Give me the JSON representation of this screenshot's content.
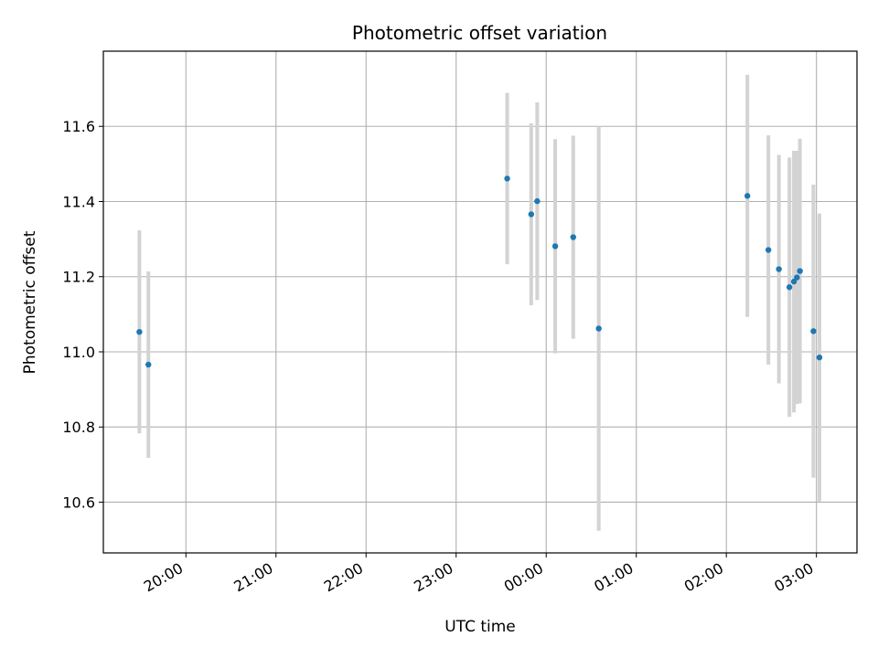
{
  "chart_data": {
    "type": "scatter",
    "title": "Photometric offset variation",
    "xlabel": "UTC time",
    "ylabel": "Photometric offset",
    "grid": true,
    "x_axis_kind": "time",
    "xlim": [
      "19:05",
      "03:27"
    ],
    "ylim": [
      10.465,
      11.8
    ],
    "x_ticks": [
      "20:00",
      "21:00",
      "22:00",
      "23:00",
      "00:00",
      "01:00",
      "02:00",
      "03:00"
    ],
    "y_ticks": [
      "10.6",
      "10.8",
      "11.0",
      "11.2",
      "11.4",
      "11.6"
    ],
    "point_color": "#1f77b4",
    "errorbar_color": "#d3d3d3",
    "points": [
      {
        "time": "19:29",
        "value": 11.053,
        "error": 0.27
      },
      {
        "time": "19:35",
        "value": 10.966,
        "error": 0.248
      },
      {
        "time": "23:34",
        "value": 11.461,
        "error": 0.228
      },
      {
        "time": "23:50",
        "value": 11.366,
        "error": 0.242
      },
      {
        "time": "23:54",
        "value": 11.401,
        "error": 0.263
      },
      {
        "time": "00:06",
        "value": 11.281,
        "error": 0.285
      },
      {
        "time": "00:18",
        "value": 11.305,
        "error": 0.27
      },
      {
        "time": "00:35",
        "value": 11.062,
        "error": 0.538
      },
      {
        "time": "02:14",
        "value": 11.415,
        "error": 0.322
      },
      {
        "time": "02:28",
        "value": 11.271,
        "error": 0.305
      },
      {
        "time": "02:35",
        "value": 11.22,
        "error": 0.304
      },
      {
        "time": "02:42",
        "value": 11.172,
        "error": 0.345
      },
      {
        "time": "02:45",
        "value": 11.187,
        "error": 0.348
      },
      {
        "time": "02:47",
        "value": 11.198,
        "error": 0.337
      },
      {
        "time": "02:49",
        "value": 11.215,
        "error": 0.352
      },
      {
        "time": "02:58",
        "value": 11.055,
        "error": 0.39
      },
      {
        "time": "03:02",
        "value": 10.985,
        "error": 0.383
      }
    ]
  }
}
